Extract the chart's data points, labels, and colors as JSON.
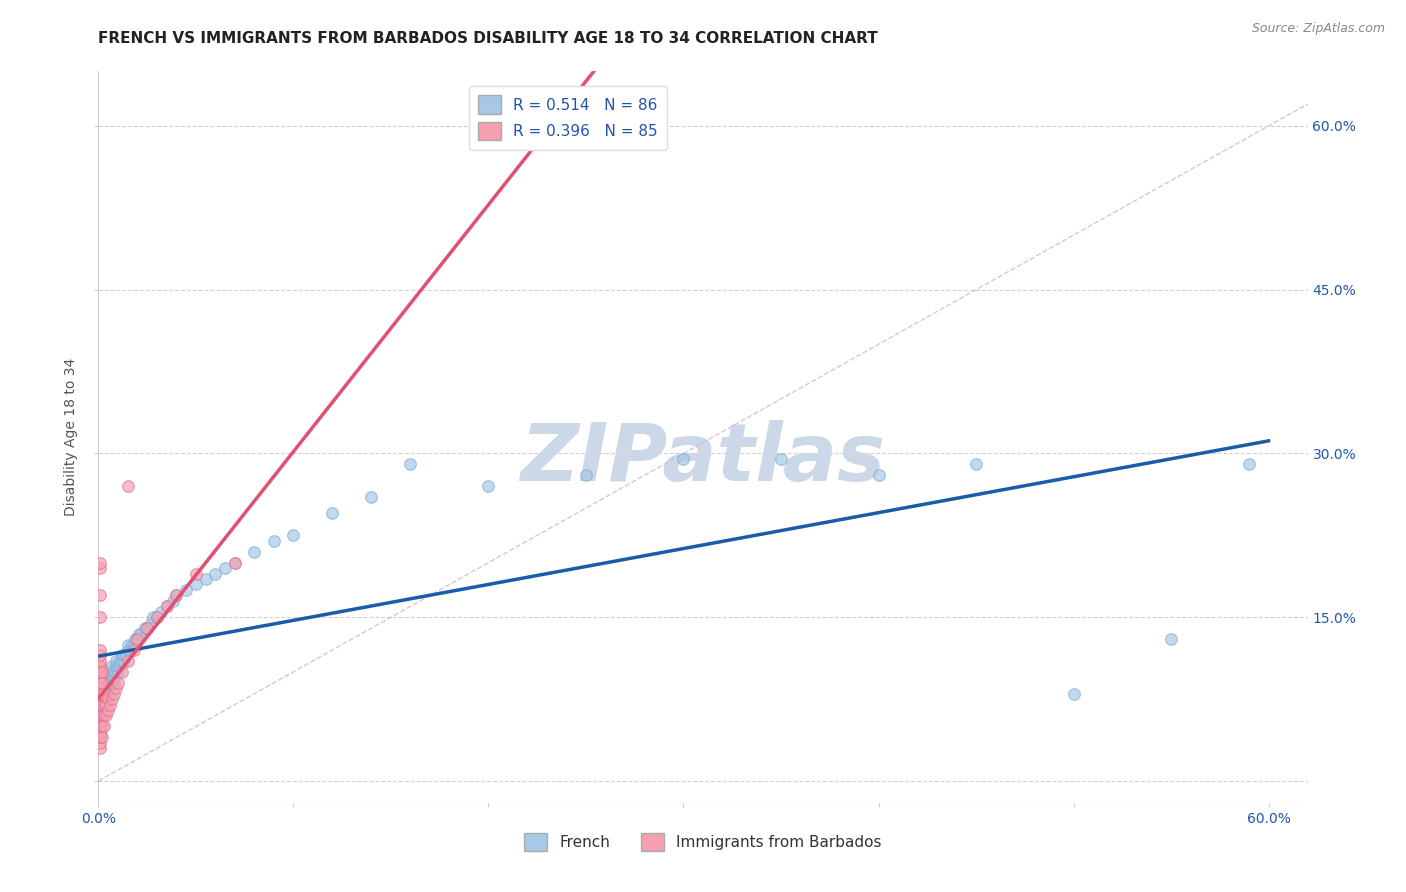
{
  "title": "FRENCH VS IMMIGRANTS FROM BARBADOS DISABILITY AGE 18 TO 34 CORRELATION CHART",
  "source": "Source: ZipAtlas.com",
  "ylabel": "Disability Age 18 to 34",
  "xlim": [
    0.0,
    0.62
  ],
  "ylim": [
    -0.02,
    0.65
  ],
  "xticks": [
    0.0,
    0.1,
    0.2,
    0.3,
    0.4,
    0.5,
    0.6
  ],
  "xticklabels": [
    "0.0%",
    "",
    "",
    "",
    "",
    "",
    "60.0%"
  ],
  "yticks": [
    0.0,
    0.15,
    0.3,
    0.45,
    0.6
  ],
  "ytick_left_labels": [
    "",
    "",
    "",
    "",
    ""
  ],
  "ytick_right_labels": [
    "",
    "15.0%",
    "30.0%",
    "45.0%",
    "60.0%"
  ],
  "french_color": "#a8c8e8",
  "french_edge_color": "#7aafd0",
  "barbados_color": "#f4a0b0",
  "barbados_edge_color": "#e07090",
  "french_line_color": "#1a5ca8",
  "barbados_line_color": "#e05070",
  "ref_line_color": "#d0b8c8",
  "legend_r_french": "R = 0.514",
  "legend_n_french": "N = 86",
  "legend_r_barbados": "R = 0.396",
  "legend_n_barbados": "N = 85",
  "watermark": "ZIPatlas",
  "watermark_color": "#ccd8e8",
  "french_scatter_x": [
    0.001,
    0.001,
    0.001,
    0.001,
    0.002,
    0.002,
    0.002,
    0.002,
    0.002,
    0.003,
    0.003,
    0.003,
    0.003,
    0.003,
    0.004,
    0.004,
    0.004,
    0.004,
    0.004,
    0.005,
    0.005,
    0.005,
    0.005,
    0.005,
    0.006,
    0.006,
    0.006,
    0.006,
    0.007,
    0.007,
    0.007,
    0.007,
    0.008,
    0.008,
    0.008,
    0.009,
    0.009,
    0.009,
    0.01,
    0.01,
    0.011,
    0.011,
    0.012,
    0.012,
    0.013,
    0.013,
    0.014,
    0.015,
    0.015,
    0.016,
    0.017,
    0.018,
    0.019,
    0.02,
    0.021,
    0.022,
    0.024,
    0.025,
    0.027,
    0.028,
    0.03,
    0.032,
    0.035,
    0.038,
    0.04,
    0.045,
    0.05,
    0.055,
    0.06,
    0.065,
    0.07,
    0.08,
    0.09,
    0.1,
    0.12,
    0.14,
    0.16,
    0.2,
    0.25,
    0.3,
    0.35,
    0.4,
    0.45,
    0.5,
    0.55,
    0.59
  ],
  "french_scatter_y": [
    0.06,
    0.07,
    0.075,
    0.08,
    0.065,
    0.07,
    0.075,
    0.08,
    0.085,
    0.07,
    0.075,
    0.08,
    0.085,
    0.09,
    0.075,
    0.08,
    0.085,
    0.09,
    0.095,
    0.08,
    0.085,
    0.09,
    0.095,
    0.1,
    0.085,
    0.09,
    0.095,
    0.1,
    0.09,
    0.095,
    0.1,
    0.105,
    0.09,
    0.095,
    0.1,
    0.1,
    0.105,
    0.11,
    0.1,
    0.105,
    0.105,
    0.11,
    0.11,
    0.115,
    0.11,
    0.115,
    0.115,
    0.12,
    0.125,
    0.12,
    0.125,
    0.125,
    0.13,
    0.13,
    0.135,
    0.135,
    0.14,
    0.14,
    0.145,
    0.15,
    0.15,
    0.155,
    0.16,
    0.165,
    0.17,
    0.175,
    0.18,
    0.185,
    0.19,
    0.195,
    0.2,
    0.21,
    0.22,
    0.225,
    0.245,
    0.26,
    0.29,
    0.27,
    0.28,
    0.295,
    0.295,
    0.28,
    0.29,
    0.08,
    0.13,
    0.29
  ],
  "barbados_scatter_x": [
    0.001,
    0.001,
    0.001,
    0.001,
    0.001,
    0.001,
    0.001,
    0.001,
    0.001,
    0.001,
    0.001,
    0.001,
    0.001,
    0.001,
    0.001,
    0.001,
    0.001,
    0.001,
    0.001,
    0.001,
    0.001,
    0.001,
    0.001,
    0.001,
    0.001,
    0.001,
    0.001,
    0.001,
    0.001,
    0.001,
    0.001,
    0.001,
    0.001,
    0.001,
    0.001,
    0.001,
    0.001,
    0.001,
    0.001,
    0.001,
    0.001,
    0.001,
    0.001,
    0.001,
    0.001,
    0.001,
    0.001,
    0.001,
    0.001,
    0.001,
    0.002,
    0.002,
    0.002,
    0.002,
    0.002,
    0.002,
    0.002,
    0.003,
    0.003,
    0.003,
    0.003,
    0.004,
    0.004,
    0.005,
    0.005,
    0.006,
    0.007,
    0.008,
    0.009,
    0.01,
    0.012,
    0.015,
    0.018,
    0.02,
    0.025,
    0.03,
    0.035,
    0.04,
    0.05,
    0.07,
    0.015,
    0.001,
    0.001,
    0.001,
    0.001
  ],
  "barbados_scatter_y": [
    0.04,
    0.05,
    0.045,
    0.055,
    0.06,
    0.065,
    0.07,
    0.075,
    0.08,
    0.085,
    0.09,
    0.095,
    0.1,
    0.105,
    0.055,
    0.06,
    0.065,
    0.07,
    0.075,
    0.08,
    0.085,
    0.09,
    0.045,
    0.05,
    0.055,
    0.06,
    0.065,
    0.07,
    0.075,
    0.08,
    0.085,
    0.09,
    0.095,
    0.1,
    0.105,
    0.11,
    0.115,
    0.12,
    0.03,
    0.035,
    0.04,
    0.045,
    0.05,
    0.055,
    0.06,
    0.065,
    0.07,
    0.075,
    0.08,
    0.085,
    0.04,
    0.05,
    0.06,
    0.07,
    0.08,
    0.09,
    0.1,
    0.05,
    0.06,
    0.07,
    0.08,
    0.06,
    0.07,
    0.065,
    0.075,
    0.07,
    0.075,
    0.08,
    0.085,
    0.09,
    0.1,
    0.11,
    0.12,
    0.13,
    0.14,
    0.15,
    0.16,
    0.17,
    0.19,
    0.2,
    0.27,
    0.195,
    0.17,
    0.2,
    0.15
  ],
  "title_fontsize": 11,
  "axis_label_fontsize": 10,
  "tick_fontsize": 10,
  "legend_fontsize": 11
}
